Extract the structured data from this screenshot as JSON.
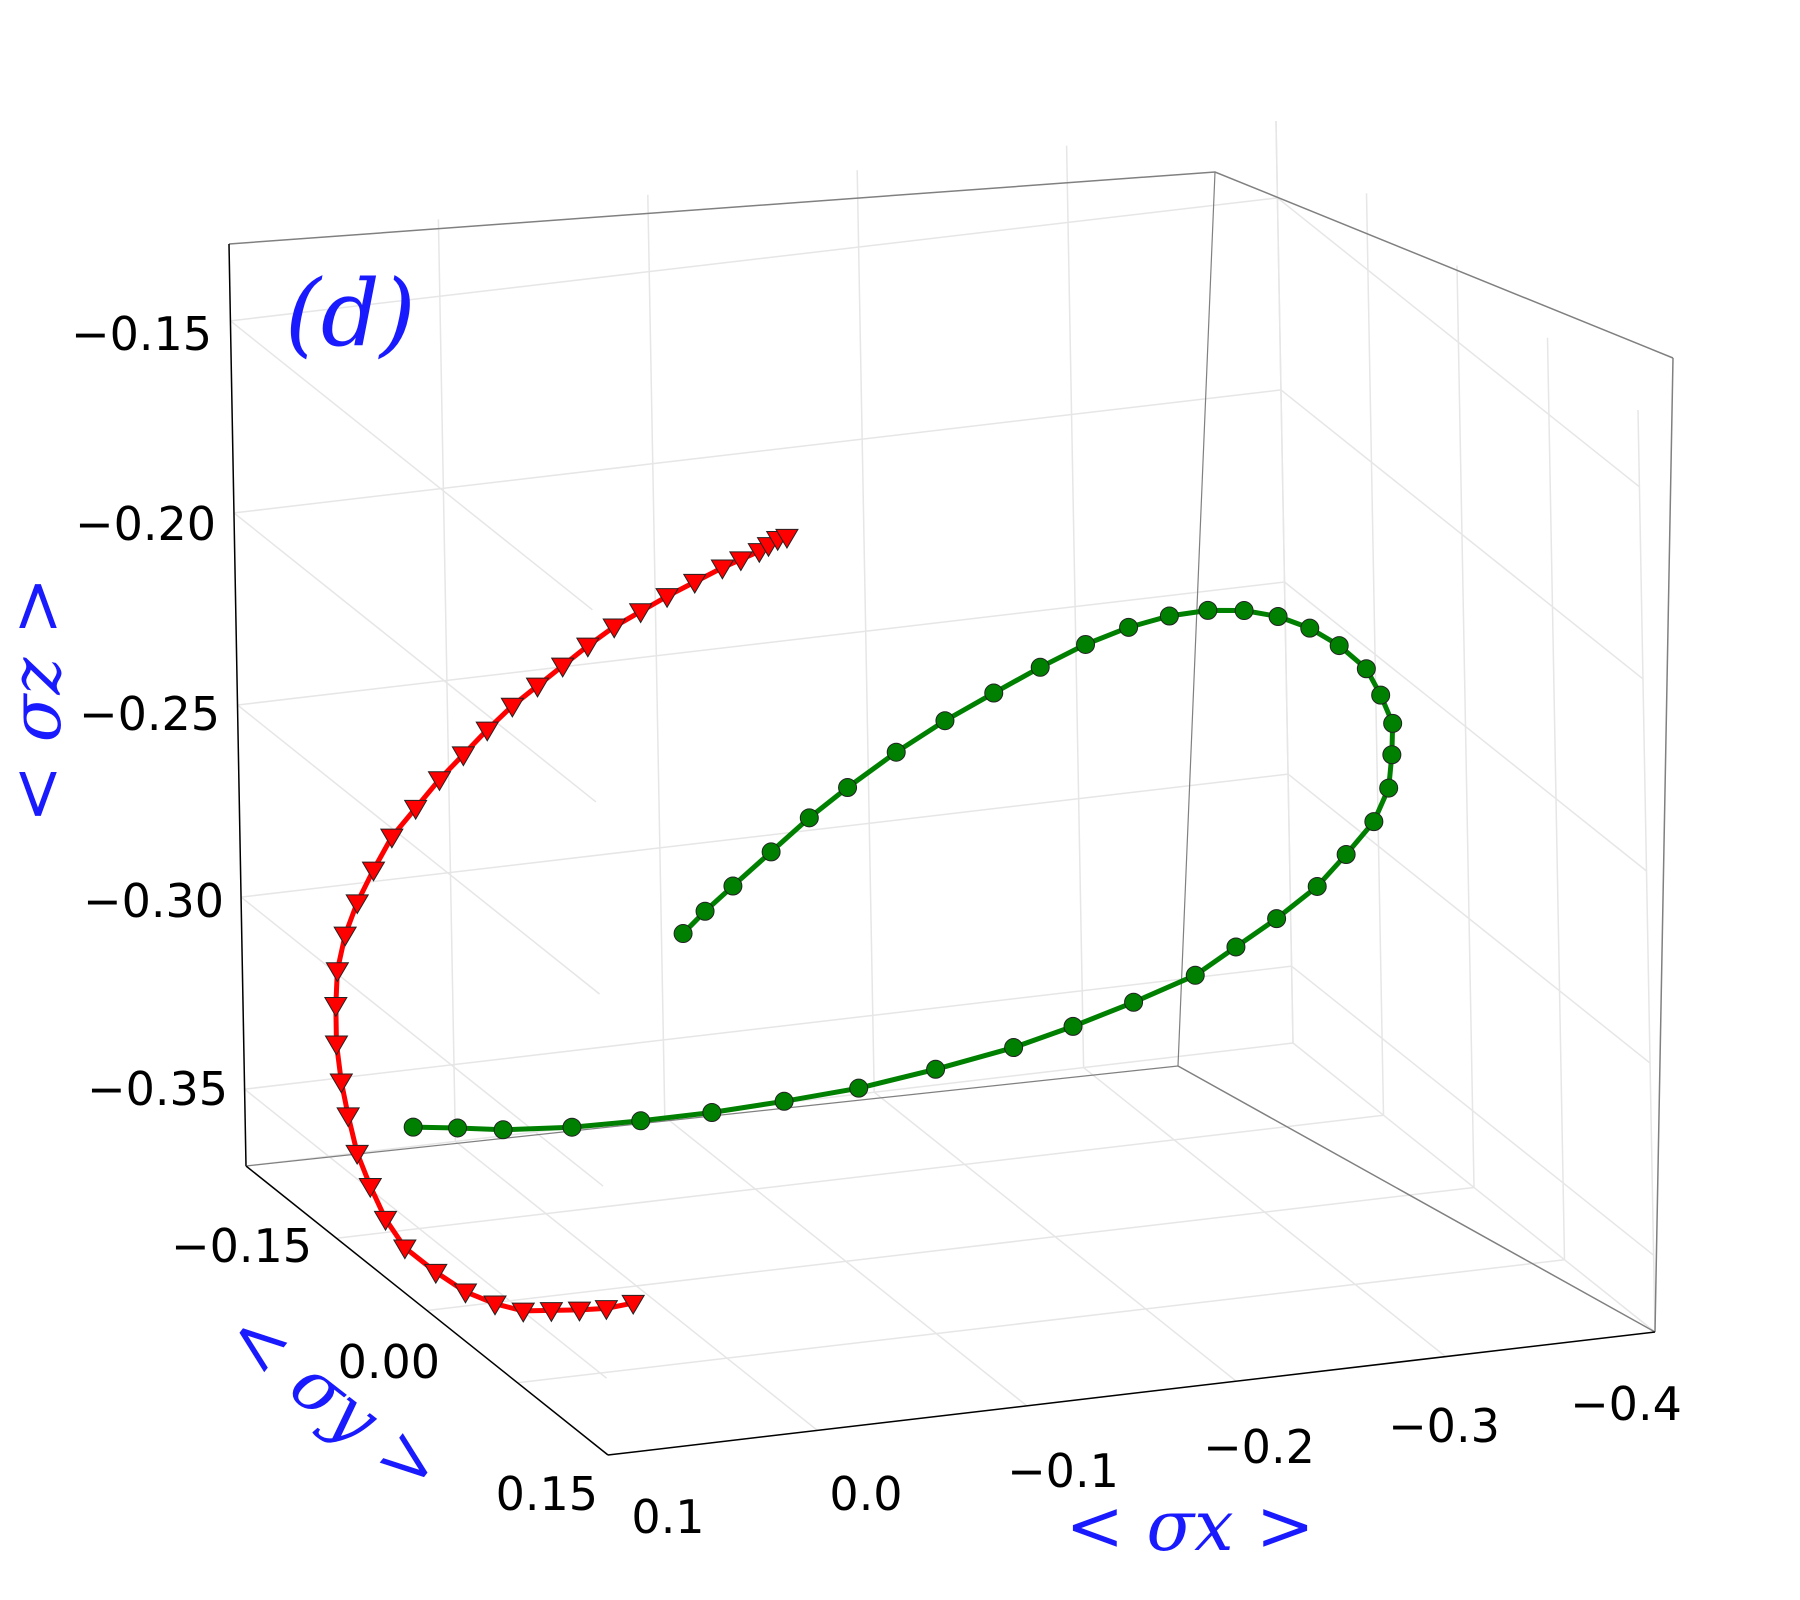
{
  "chart_data": {
    "type": "scatter",
    "panel_label": "(d)",
    "xlabel": "< σx >",
    "ylabel": "< σy >",
    "zlabel": "< σz >",
    "x_ticks": [
      "0.1",
      "0.0",
      "−0.1",
      "−0.2",
      "−0.3",
      "−0.4"
    ],
    "y_ticks": [
      "−0.15",
      "0.00",
      "0.15"
    ],
    "z_ticks": [
      "−0.15",
      "−0.20",
      "−0.25",
      "−0.30",
      "−0.35"
    ],
    "xlim": [
      0.1,
      -0.4
    ],
    "ylim": [
      -0.15,
      0.15
    ],
    "zlim": [
      -0.37,
      -0.13
    ],
    "grid": true,
    "colors": {
      "series_a": "#ff0000",
      "series_b": "#008000",
      "grid": "#e6e6e6",
      "label": "#1a1aff"
    },
    "series": [
      {
        "marker": "triangle-down",
        "color": "#ff0000",
        "x": [
          0.03,
          0.04,
          0.05,
          0.06,
          0.07,
          0.08,
          0.09,
          0.1,
          0.11,
          0.115,
          0.118,
          0.12,
          0.12,
          0.119,
          0.117,
          0.113,
          0.108,
          0.1,
          0.09,
          0.078,
          0.065,
          0.05,
          0.035,
          0.02,
          0.005,
          -0.01,
          -0.025,
          -0.04,
          -0.055,
          -0.07,
          -0.085,
          -0.1,
          -0.115,
          -0.13,
          -0.14,
          -0.15,
          -0.155,
          -0.16,
          -0.165
        ],
        "y": [
          0.05,
          0.045,
          0.04,
          0.034,
          0.028,
          0.022,
          0.015,
          0.008,
          0.0,
          -0.007,
          -0.014,
          -0.021,
          -0.028,
          -0.035,
          -0.042,
          -0.049,
          -0.056,
          -0.063,
          -0.07,
          -0.077,
          -0.084,
          -0.09,
          -0.096,
          -0.102,
          -0.108,
          -0.113,
          -0.118,
          -0.123,
          -0.128,
          -0.132,
          -0.136,
          -0.14,
          -0.143,
          -0.146,
          -0.148,
          -0.15,
          -0.151,
          -0.152,
          -0.153
        ],
        "z": [
          -0.36,
          -0.362,
          -0.363,
          -0.364,
          -0.365,
          -0.364,
          -0.362,
          -0.358,
          -0.353,
          -0.347,
          -0.34,
          -0.333,
          -0.325,
          -0.318,
          -0.31,
          -0.302,
          -0.295,
          -0.288,
          -0.282,
          -0.276,
          -0.27,
          -0.265,
          -0.26,
          -0.256,
          -0.252,
          -0.248,
          -0.245,
          -0.242,
          -0.239,
          -0.236,
          -0.234,
          -0.232,
          -0.23,
          -0.228,
          -0.227,
          -0.226,
          -0.225,
          -0.224,
          -0.224
        ]
      },
      {
        "marker": "circle",
        "color": "#008000",
        "x": [
          0.02,
          0.0,
          -0.02,
          -0.05,
          -0.08,
          -0.11,
          -0.14,
          -0.17,
          -0.2,
          -0.23,
          -0.25,
          -0.27,
          -0.29,
          -0.3,
          -0.31,
          -0.32,
          -0.325,
          -0.33,
          -0.33,
          -0.325,
          -0.32,
          -0.31,
          -0.3,
          -0.285,
          -0.27,
          -0.255,
          -0.24,
          -0.225,
          -0.21,
          -0.195,
          -0.18,
          -0.165,
          -0.15,
          -0.135,
          -0.12,
          -0.105,
          -0.095,
          -0.085,
          -0.075,
          -0.07,
          -0.065
        ],
        "y": [
          -0.15,
          -0.148,
          -0.145,
          -0.14,
          -0.135,
          -0.128,
          -0.12,
          -0.11,
          -0.098,
          -0.085,
          -0.07,
          -0.054,
          -0.037,
          -0.02,
          -0.003,
          0.014,
          0.03,
          0.045,
          0.058,
          0.07,
          0.08,
          0.088,
          0.094,
          0.098,
          0.1,
          0.1,
          0.098,
          0.094,
          0.088,
          0.08,
          0.07,
          0.058,
          0.045,
          0.03,
          0.015,
          0.0,
          -0.015,
          -0.03,
          -0.045,
          -0.06,
          -0.07
        ],
        "z": [
          -0.365,
          -0.366,
          -0.367,
          -0.367,
          -0.366,
          -0.364,
          -0.361,
          -0.357,
          -0.351,
          -0.344,
          -0.336,
          -0.327,
          -0.317,
          -0.306,
          -0.295,
          -0.283,
          -0.271,
          -0.259,
          -0.247,
          -0.235,
          -0.224,
          -0.214,
          -0.205,
          -0.197,
          -0.191,
          -0.187,
          -0.185,
          -0.185,
          -0.187,
          -0.191,
          -0.197,
          -0.205,
          -0.214,
          -0.224,
          -0.235,
          -0.247,
          -0.258,
          -0.27,
          -0.282,
          -0.292,
          -0.3
        ]
      }
    ]
  }
}
